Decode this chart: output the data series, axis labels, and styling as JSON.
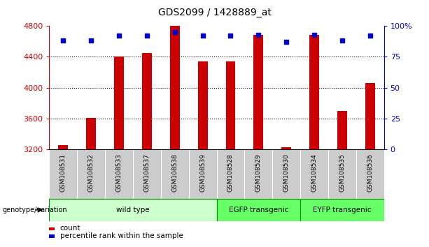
{
  "title": "GDS2099 / 1428889_at",
  "samples": [
    "GSM108531",
    "GSM108532",
    "GSM108533",
    "GSM108537",
    "GSM108538",
    "GSM108539",
    "GSM108528",
    "GSM108529",
    "GSM108530",
    "GSM108534",
    "GSM108535",
    "GSM108536"
  ],
  "counts": [
    3260,
    3610,
    4400,
    4450,
    4800,
    4340,
    4340,
    4680,
    3230,
    4680,
    3700,
    4060
  ],
  "percentiles": [
    88,
    88,
    92,
    92,
    95,
    92,
    92,
    93,
    87,
    93,
    88,
    92
  ],
  "ymin": 3200,
  "ymax": 4800,
  "yticks": [
    3200,
    3600,
    4000,
    4400,
    4800
  ],
  "right_yticks": [
    0,
    25,
    50,
    75,
    100
  ],
  "bar_color": "#cc0000",
  "dot_color": "#0000cc",
  "groups": [
    {
      "label": "wild type",
      "start": 0,
      "end": 6,
      "color": "#ccffcc",
      "border_color": "#009900"
    },
    {
      "label": "EGFP transgenic",
      "start": 6,
      "end": 9,
      "color": "#66ff66",
      "border_color": "#009900"
    },
    {
      "label": "EYFP transgenic",
      "start": 9,
      "end": 12,
      "color": "#66ff66",
      "border_color": "#009900"
    }
  ],
  "group_row_label": "genotype/variation",
  "legend_count_label": "count",
  "legend_percentile_label": "percentile rank within the sample",
  "tick_label_color": "#cc0000",
  "right_tick_color": "#0000cc",
  "bar_color_hex": "#cc0000",
  "dot_color_hex": "#0000cc",
  "sample_bg_color": "#cccccc",
  "grid_linestyle": ":",
  "grid_linewidth": 0.8
}
